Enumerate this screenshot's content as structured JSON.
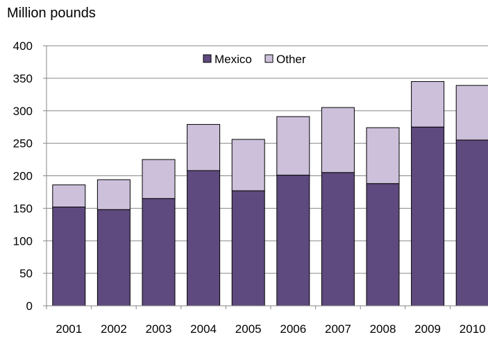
{
  "chart_data": {
    "type": "bar",
    "stacked": true,
    "title": "",
    "xlabel": "",
    "ylabel": "Million pounds",
    "ylim": [
      0,
      400
    ],
    "yticks": [
      0,
      50,
      100,
      150,
      200,
      250,
      300,
      350,
      400
    ],
    "grid": "horizontal",
    "legend_position": "top-center",
    "categories": [
      "2001",
      "2002",
      "2003",
      "2004",
      "2005",
      "2006",
      "2007",
      "2008",
      "2009",
      "2010"
    ],
    "series": [
      {
        "name": "Mexico",
        "color": "#5e4a7e",
        "values": [
          152,
          148,
          165,
          208,
          177,
          201,
          205,
          188,
          275,
          255
        ]
      },
      {
        "name": "Other",
        "color": "#ccc0da",
        "values": [
          34,
          46,
          60,
          71,
          79,
          90,
          100,
          86,
          70,
          84
        ]
      }
    ]
  }
}
